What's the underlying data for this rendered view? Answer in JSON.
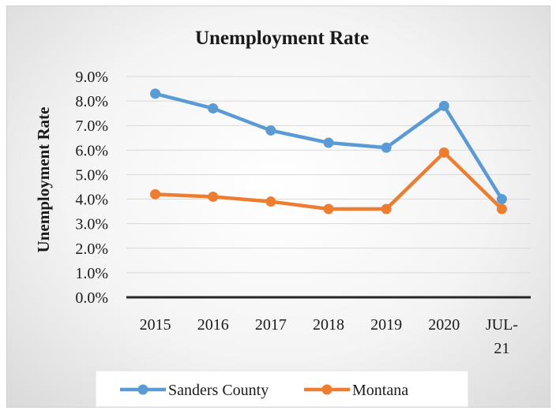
{
  "chart_data": {
    "type": "line",
    "title": "Unemployment Rate",
    "ylabel": "Unemployment Rate",
    "xlabel": "",
    "categories": [
      [
        "2015"
      ],
      [
        "2016"
      ],
      [
        "2017"
      ],
      [
        "2018"
      ],
      [
        "2019"
      ],
      [
        "2020"
      ],
      [
        "JUL-",
        "21"
      ]
    ],
    "y_ticks": [
      "0.0%",
      "1.0%",
      "2.0%",
      "3.0%",
      "4.0%",
      "5.0%",
      "6.0%",
      "7.0%",
      "8.0%",
      "9.0%"
    ],
    "ylim": [
      0,
      9
    ],
    "y_unit": "%",
    "grid": true,
    "legend_position": "bottom",
    "series": [
      {
        "name": "Sanders County",
        "color": "#5b9bd5",
        "values": [
          8.3,
          7.7,
          6.8,
          6.3,
          6.1,
          7.8,
          4.0
        ]
      },
      {
        "name": "Montana",
        "color": "#ed7d31",
        "values": [
          4.2,
          4.1,
          3.9,
          3.6,
          3.6,
          5.9,
          3.6
        ]
      }
    ]
  }
}
